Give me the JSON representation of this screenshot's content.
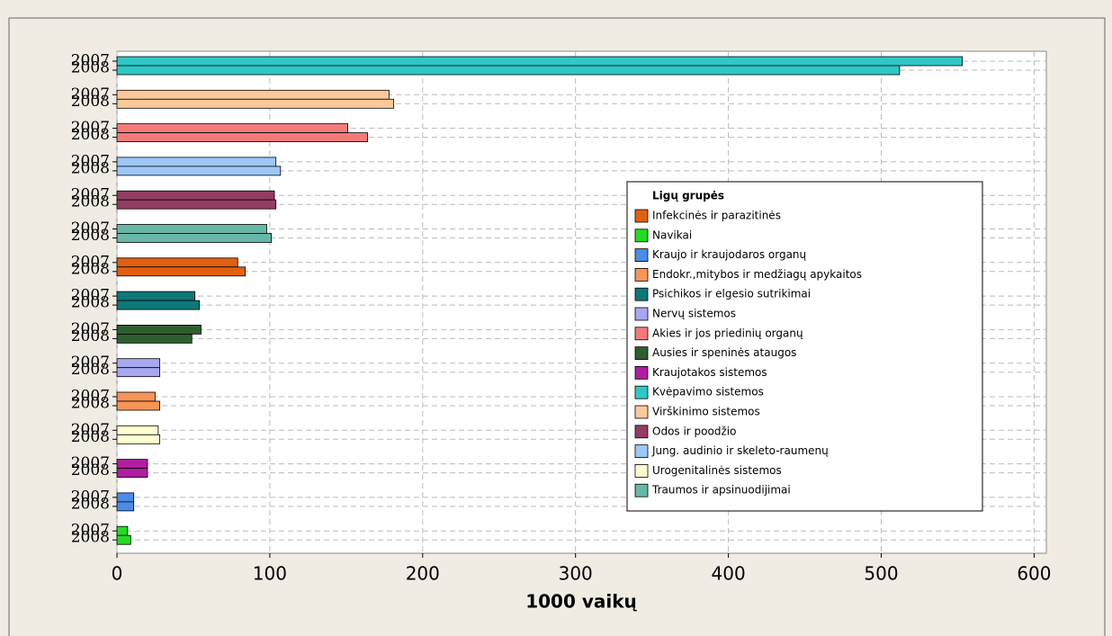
{
  "chart_data": {
    "type": "bar",
    "orientation": "horizontal",
    "xlabel": "1000 vaikų",
    "years": [
      "2007",
      "2008"
    ],
    "xlim": [
      0,
      608
    ],
    "xticks": [
      0,
      100,
      200,
      300,
      400,
      500,
      600
    ],
    "grid": true,
    "rows": [
      {
        "color": "#2ec8c8",
        "values": [
          553,
          512
        ]
      },
      {
        "color": "#fbc89a",
        "values": [
          178,
          181
        ]
      },
      {
        "color": "#f47a7a",
        "values": [
          151,
          164
        ]
      },
      {
        "color": "#9cc8f8",
        "values": [
          104,
          107
        ]
      },
      {
        "color": "#943c64",
        "values": [
          103,
          104
        ]
      },
      {
        "color": "#68b8a8",
        "values": [
          98,
          101
        ]
      },
      {
        "color": "#e0600f",
        "values": [
          79,
          84
        ]
      },
      {
        "color": "#0e7878",
        "values": [
          51,
          54
        ]
      },
      {
        "color": "#2e5e2e",
        "values": [
          55,
          49
        ]
      },
      {
        "color": "#a8a8f0",
        "values": [
          28,
          28
        ]
      },
      {
        "color": "#f79457",
        "values": [
          25,
          28
        ]
      },
      {
        "color": "#fdfdd0",
        "values": [
          27,
          28
        ]
      },
      {
        "color": "#b01ea0",
        "values": [
          20,
          20
        ]
      },
      {
        "color": "#4b8ce8",
        "values": [
          11,
          11
        ]
      },
      {
        "color": "#22dd22",
        "values": [
          7,
          9
        ]
      }
    ],
    "legend": {
      "title": "Ligų grupės",
      "position": "right",
      "entries": [
        {
          "name": "Infekcinės ir parazitinės",
          "color": "#e0600f"
        },
        {
          "name": "Navikai",
          "color": "#22dd22"
        },
        {
          "name": "Kraujo ir kraujodaros organų",
          "color": "#4b8ce8"
        },
        {
          "name": "Endokr.,mitybos ir medžiagų apykaitos",
          "color": "#f79457"
        },
        {
          "name": "Psichikos ir elgesio sutrikimai",
          "color": "#0e7878"
        },
        {
          "name": "Nervų sistemos",
          "color": "#a8a8f0"
        },
        {
          "name": "Akies ir jos priedinių organų",
          "color": "#f47a7a"
        },
        {
          "name": "Ausies ir speninės ataugos",
          "color": "#2e5e2e"
        },
        {
          "name": "Kraujotakos sistemos",
          "color": "#b01ea0"
        },
        {
          "name": "Kvėpavimo sistemos",
          "color": "#2ec8c8"
        },
        {
          "name": "Virškinimo sistemos",
          "color": "#fbc89a"
        },
        {
          "name": "Odos ir poodžio",
          "color": "#943c64"
        },
        {
          "name": "Jung. audinio ir skeleto-raumenų",
          "color": "#9cc8f8"
        },
        {
          "name": "Urogenitalinės sistemos",
          "color": "#fdfdd0"
        },
        {
          "name": "Traumos ir apsinuodijimai",
          "color": "#68b8a8"
        }
      ]
    }
  }
}
